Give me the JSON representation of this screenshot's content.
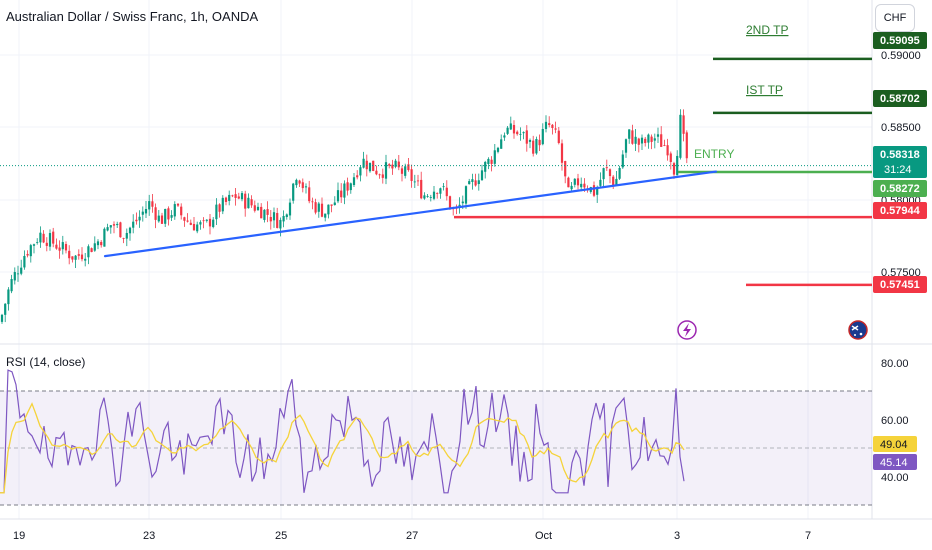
{
  "header": {
    "title": "Australian Dollar / Swiss Franc, 1h, OANDA",
    "currency": "CHF"
  },
  "rsi_panel": {
    "title": "RSI (14, close)"
  },
  "chart_data": [
    {
      "type": "candlestick",
      "title": "Australian Dollar / Swiss Franc, 1h, OANDA",
      "x_tick_labels": [
        "19",
        "23",
        "25",
        "27",
        "Oct",
        "3",
        "7"
      ],
      "y_tick_labels": [
        "0.59000",
        "0.58500",
        "0.58000",
        "0.57500"
      ],
      "y_ticks": [
        0.59,
        0.585,
        0.58,
        0.575
      ],
      "ylim": [
        0.5705,
        0.5945
      ],
      "current_price": "0.58318",
      "countdown": "31:24",
      "price_levels": [
        {
          "label": "2ND TP",
          "price": "0.59095",
          "value": 0.59095,
          "color": "#1b5e20"
        },
        {
          "label": "IST TP",
          "price": "0.58702",
          "value": 0.58702,
          "color": "#1b5e20"
        },
        {
          "label": "ENTRY",
          "price": "0.58272",
          "value": 0.58272,
          "color": "#4caf50"
        },
        {
          "label": "",
          "price": "0.57944",
          "value": 0.57944,
          "color": "#f23645"
        },
        {
          "label": "",
          "price": "0.57451",
          "value": 0.57451,
          "color": "#f23645"
        }
      ],
      "trendline": {
        "start": {
          "date": "Sep 21",
          "price": 0.5766
        },
        "end": {
          "date": "Oct 3",
          "price": 0.58275
        }
      },
      "colors": {
        "up": "#089981",
        "down": "#f23645",
        "trendline": "#2962ff"
      }
    },
    {
      "type": "line",
      "title": "RSI (14, close)",
      "y_tick_labels": [
        "80.00",
        "60.00",
        "40.00"
      ],
      "y_ticks": [
        80,
        60,
        40
      ],
      "ylim": [
        24,
        86
      ],
      "band": [
        30,
        70
      ],
      "series": [
        {
          "name": "RSI",
          "last": "45.14",
          "color": "#7e57c2"
        },
        {
          "name": "RSI-based MA",
          "last": "49.04",
          "color": "#f5d33a"
        }
      ]
    }
  ]
}
